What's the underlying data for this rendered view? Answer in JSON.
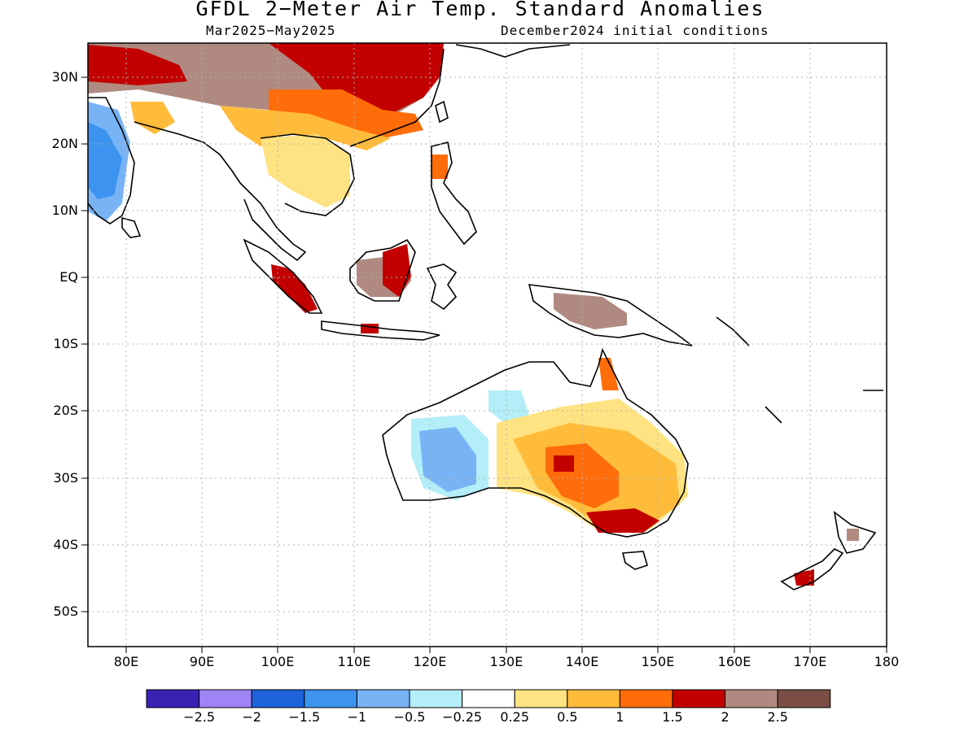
{
  "header": {
    "title": "GFDL 2−Meter Air Temp. Standard Anomalies",
    "period": "Mar2025−May2025",
    "init": "December2024 initial conditions"
  },
  "axes": {
    "lat_labels": [
      "30N",
      "20N",
      "10N",
      "EQ",
      "10S",
      "20S",
      "30S",
      "40S",
      "50S"
    ],
    "lon_labels": [
      "80E",
      "90E",
      "100E",
      "110E",
      "120E",
      "130E",
      "140E",
      "150E",
      "160E",
      "170E",
      "180"
    ],
    "lon_range": [
      75,
      180
    ],
    "lat_range": [
      -55,
      35
    ],
    "grid": true
  },
  "colorbar": {
    "colors": [
      "#3b20b4",
      "#9f84f5",
      "#1e62dc",
      "#3c93f0",
      "#78b4f5",
      "#b4eef8",
      "#ffffff",
      "#ffe382",
      "#ffbb3a",
      "#ff6c0a",
      "#c20000",
      "#b08a80",
      "#7a4e45"
    ],
    "labels": [
      "−2.5",
      "−2",
      "−1.5",
      "−1",
      "−0.5",
      "−0.25",
      "0.25",
      "0.5",
      "1",
      "1.5",
      "2",
      "2.5"
    ]
  },
  "legend_regions": {
    "east_australia": "1 to 2",
    "southwest_australia": "−0.5 to −1",
    "india_west": "−1 to −1.5",
    "tibet_south_china": "1.5 to 2.5"
  }
}
